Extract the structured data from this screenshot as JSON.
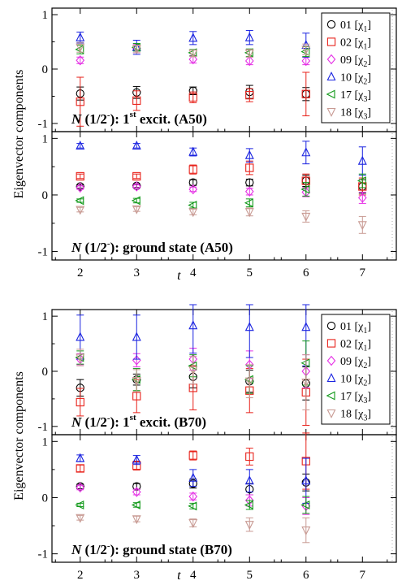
{
  "chart_data": [
    {
      "type": "scatter",
      "figure": "A50",
      "ylabel": "Eigenvector components",
      "xlabel": "t",
      "x_ticks": [
        2,
        3,
        4,
        5,
        6,
        7
      ],
      "y_ticks": [
        -1,
        0,
        1
      ],
      "legend": {
        "placement": "top-right",
        "entries": [
          {
            "num": "01",
            "chi": "1",
            "marker": "circle",
            "color": "#000000"
          },
          {
            "num": "02",
            "chi": "1",
            "marker": "square",
            "color": "#e8221b"
          },
          {
            "num": "09",
            "chi": "2",
            "marker": "diamond",
            "color": "#e530e5"
          },
          {
            "num": "10",
            "chi": "2",
            "marker": "triangle-up",
            "color": "#1a23e0"
          },
          {
            "num": "17",
            "chi": "3",
            "marker": "triangle-left",
            "color": "#139a1b"
          },
          {
            "num": "18",
            "chi": "3",
            "marker": "triangle-down",
            "color": "#c89a93"
          }
        ]
      },
      "panels": [
        {
          "id": "A50-top",
          "title": {
            "prefix": "N",
            "paren": "(1/2",
            "sign": "-",
            "suffix": "): 1",
            "sup": "st",
            "tail": " excit. (A50)"
          },
          "xlim": [
            1.5,
            7.6
          ],
          "ylim": [
            -1.15,
            1.12
          ],
          "series": [
            {
              "name": "01",
              "x": [
                2,
                3,
                4,
                5,
                6
              ],
              "y": [
                -0.45,
                -0.43,
                -0.4,
                -0.42,
                -0.46
              ],
              "err": [
                0.12,
                0.11,
                0.07,
                0.12,
                0.12
              ]
            },
            {
              "name": "02",
              "x": [
                2,
                3,
                4,
                5,
                6
              ],
              "y": [
                -0.6,
                -0.58,
                -0.52,
                -0.48,
                -0.46
              ],
              "err": [
                0.45,
                0.18,
                0.1,
                0.12,
                0.4
              ]
            },
            {
              "name": "09",
              "x": [
                2,
                3,
                4,
                5,
                6
              ],
              "y": [
                0.16,
                0.38,
                0.18,
                0.15,
                0.15
              ],
              "err": [
                0.06,
                0.08,
                0.07,
                0.07,
                0.07
              ]
            },
            {
              "name": "10",
              "x": [
                2,
                3,
                4,
                5,
                6
              ],
              "y": [
                0.58,
                0.4,
                0.57,
                0.58,
                0.44
              ],
              "err": [
                0.1,
                0.13,
                0.12,
                0.13,
                0.22
              ]
            },
            {
              "name": "17",
              "x": [
                2,
                3,
                4,
                5,
                6
              ],
              "y": [
                0.36,
                0.4,
                0.3,
                0.3,
                0.32
              ],
              "err": [
                0.08,
                0.07,
                0.06,
                0.07,
                0.09
              ]
            },
            {
              "name": "18",
              "x": [
                2,
                3,
                4,
                5,
                6
              ],
              "y": [
                0.4,
                0.37,
                0.29,
                0.29,
                0.36
              ],
              "err": [
                0.09,
                0.07,
                0.06,
                0.07,
                0.1
              ]
            }
          ]
        },
        {
          "id": "A50-bottom",
          "title": {
            "prefix": "N",
            "paren": "(1/2",
            "sign": "-",
            "suffix": "): ground state (A50)",
            "sup": "",
            "tail": ""
          },
          "xlim": [
            1.5,
            7.6
          ],
          "ylim": [
            -1.15,
            1.12
          ],
          "series": [
            {
              "name": "01",
              "x": [
                2,
                3,
                4,
                5,
                6,
                7
              ],
              "y": [
                0.15,
                0.16,
                0.22,
                0.22,
                0.25,
                0.15
              ],
              "err": [
                0.03,
                0.03,
                0.05,
                0.06,
                0.1,
                0.12
              ]
            },
            {
              "name": "02",
              "x": [
                2,
                3,
                4,
                5,
                6,
                7
              ],
              "y": [
                0.33,
                0.33,
                0.45,
                0.48,
                0.25,
                0.15
              ],
              "err": [
                0.04,
                0.04,
                0.08,
                0.12,
                0.12,
                0.15
              ]
            },
            {
              "name": "09",
              "x": [
                2,
                3,
                4,
                5,
                6,
                7
              ],
              "y": [
                0.13,
                0.15,
                0.1,
                0.06,
                0.05,
                -0.05
              ],
              "err": [
                0.03,
                0.03,
                0.04,
                0.06,
                0.08,
                0.1
              ]
            },
            {
              "name": "10",
              "x": [
                2,
                3,
                4,
                5,
                6,
                7
              ],
              "y": [
                0.87,
                0.87,
                0.76,
                0.7,
                0.75,
                0.6
              ],
              "err": [
                0.04,
                0.04,
                0.07,
                0.12,
                0.2,
                0.25
              ]
            },
            {
              "name": "17",
              "x": [
                2,
                3,
                4,
                5,
                6,
                7
              ],
              "y": [
                -0.1,
                -0.1,
                -0.18,
                -0.14,
                0.1,
                0.25
              ],
              "err": [
                0.03,
                0.04,
                0.05,
                0.07,
                0.12,
                0.12
              ]
            },
            {
              "name": "18",
              "x": [
                2,
                3,
                4,
                5,
                6,
                7
              ],
              "y": [
                -0.26,
                -0.25,
                -0.3,
                -0.3,
                -0.38,
                -0.53
              ],
              "err": [
                0.04,
                0.04,
                0.05,
                0.07,
                0.1,
                0.15
              ]
            }
          ]
        }
      ]
    },
    {
      "type": "scatter",
      "figure": "B70",
      "ylabel": "Eigenvector components",
      "xlabel": "t",
      "x_ticks": [
        2,
        3,
        4,
        5,
        6,
        7
      ],
      "y_ticks": [
        -1,
        0,
        1
      ],
      "legend": {
        "placement": "top-right",
        "entries": [
          {
            "num": "01",
            "chi": "1",
            "marker": "circle",
            "color": "#000000"
          },
          {
            "num": "02",
            "chi": "1",
            "marker": "square",
            "color": "#e8221b"
          },
          {
            "num": "09",
            "chi": "2",
            "marker": "diamond",
            "color": "#e530e5"
          },
          {
            "num": "10",
            "chi": "2",
            "marker": "triangle-up",
            "color": "#1a23e0"
          },
          {
            "num": "17",
            "chi": "3",
            "marker": "triangle-left",
            "color": "#139a1b"
          },
          {
            "num": "18",
            "chi": "3",
            "marker": "triangle-down",
            "color": "#c89a93"
          }
        ]
      },
      "panels": [
        {
          "id": "B70-top",
          "title": {
            "prefix": "N",
            "paren": "(1/2",
            "sign": "-",
            "suffix": "): 1",
            "sup": "st",
            "tail": " excit. (B70)"
          },
          "xlim": [
            1.5,
            7.6
          ],
          "ylim": [
            -1.15,
            1.12
          ],
          "series": [
            {
              "name": "01",
              "x": [
                2,
                3,
                4,
                5,
                6
              ],
              "y": [
                -0.3,
                -0.15,
                -0.1,
                -0.18,
                -0.22
              ],
              "err": [
                0.15,
                0.1,
                0.2,
                0.2,
                0.3
              ]
            },
            {
              "name": "02",
              "x": [
                2,
                3,
                4,
                5,
                6
              ],
              "y": [
                -0.56,
                -0.45,
                -0.3,
                -0.35,
                -0.38
              ],
              "err": [
                0.25,
                0.3,
                0.4,
                0.4,
                0.6
              ]
            },
            {
              "name": "09",
              "x": [
                2,
                3,
                4,
                5,
                6
              ],
              "y": [
                0.22,
                0.2,
                0.22,
                0.12,
                0.0
              ],
              "err": [
                0.1,
                0.12,
                0.2,
                0.25,
                0.3
              ]
            },
            {
              "name": "10",
              "x": [
                2,
                3,
                4,
                5,
                6
              ],
              "y": [
                0.62,
                0.62,
                0.83,
                0.8,
                0.8
              ],
              "err": [
                0.4,
                0.4,
                0.5,
                0.55,
                0.7
              ]
            },
            {
              "name": "17",
              "x": [
                2,
                3,
                4,
                5,
                6
              ],
              "y": [
                0.25,
                -0.15,
                0.1,
                -0.15,
                0.15
              ],
              "err": [
                0.12,
                0.2,
                0.2,
                0.25,
                0.4
              ]
            },
            {
              "name": "18",
              "x": [
                2,
                3,
                4,
                5,
                6
              ],
              "y": [
                0.25,
                -0.17,
                0.02,
                -0.18,
                -0.2
              ],
              "err": [
                0.15,
                0.2,
                0.25,
                0.3,
                0.5
              ]
            }
          ]
        },
        {
          "id": "B70-bottom",
          "title": {
            "prefix": "N",
            "paren": "(1/2",
            "sign": "-",
            "suffix": "): ground state (B70)",
            "sup": "",
            "tail": ""
          },
          "xlim": [
            1.5,
            7.6
          ],
          "ylim": [
            -1.15,
            1.12
          ],
          "series": [
            {
              "name": "01",
              "x": [
                2,
                3,
                4,
                5,
                6
              ],
              "y": [
                0.2,
                0.2,
                0.25,
                0.15,
                0.27
              ],
              "err": [
                0.04,
                0.05,
                0.08,
                0.1,
                0.15
              ]
            },
            {
              "name": "02",
              "x": [
                2,
                3,
                4,
                5,
                6
              ],
              "y": [
                0.52,
                0.57,
                0.75,
                0.73,
                0.65
              ],
              "err": [
                0.06,
                0.08,
                0.08,
                0.15,
                0.5
              ]
            },
            {
              "name": "09",
              "x": [
                2,
                3,
                4,
                5,
                6
              ],
              "y": [
                0.18,
                0.1,
                0.02,
                -0.05,
                -0.15
              ],
              "err": [
                0.04,
                0.05,
                0.06,
                0.1,
                0.15
              ]
            },
            {
              "name": "10",
              "x": [
                2,
                3,
                4,
                5,
                6
              ],
              "y": [
                0.7,
                0.67,
                0.35,
                0.3,
                0.3
              ],
              "err": [
                0.06,
                0.08,
                0.15,
                0.2,
                0.4
              ]
            },
            {
              "name": "17",
              "x": [
                2,
                3,
                4,
                5,
                6
              ],
              "y": [
                -0.13,
                -0.13,
                -0.15,
                -0.13,
                -0.13
              ],
              "err": [
                0.03,
                0.04,
                0.05,
                0.08,
                0.15
              ]
            },
            {
              "name": "18",
              "x": [
                2,
                3,
                4,
                5,
                6
              ],
              "y": [
                -0.36,
                -0.38,
                -0.45,
                -0.48,
                -0.58
              ],
              "err": [
                0.04,
                0.05,
                0.07,
                0.12,
                0.22
              ]
            }
          ]
        }
      ]
    }
  ]
}
